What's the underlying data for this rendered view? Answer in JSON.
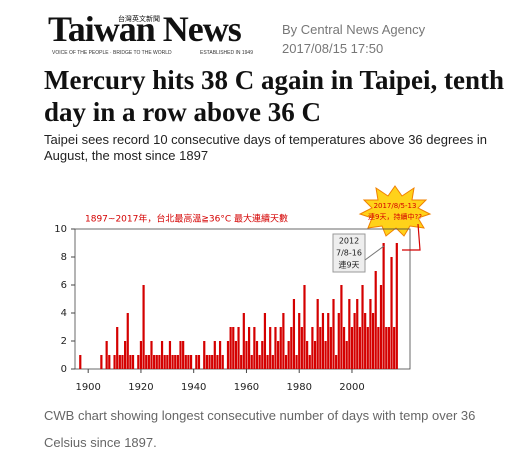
{
  "header": {
    "logo": "Taiwan News",
    "logo_chinese": "台灣英文新聞",
    "tagline": "VOICE OF THE PEOPLE · BRIDGE TO THE WORLD",
    "established": "ESTABLISHED IN 1949",
    "byline": "By  Central News Agency",
    "date": "2017/08/15 17:50"
  },
  "headline": "Mercury hits 38 C again in Taipei, tenth day in a row above 36 C",
  "subheadline": "Taipei sees record 10 consecutive days of temperatures above 36 degrees in August, the most since 1897",
  "chart_data": {
    "type": "bar",
    "title": "1897~2017年，台北最高溫≧36°C 最大連續天數",
    "color": "#d40000",
    "x": [
      1897,
      1898,
      1899,
      1900,
      1901,
      1902,
      1903,
      1904,
      1905,
      1906,
      1907,
      1908,
      1909,
      1910,
      1911,
      1912,
      1913,
      1914,
      1915,
      1916,
      1917,
      1918,
      1919,
      1920,
      1921,
      1922,
      1923,
      1924,
      1925,
      1926,
      1927,
      1928,
      1929,
      1930,
      1931,
      1932,
      1933,
      1934,
      1935,
      1936,
      1937,
      1938,
      1939,
      1940,
      1941,
      1942,
      1943,
      1944,
      1945,
      1946,
      1947,
      1948,
      1949,
      1950,
      1951,
      1952,
      1953,
      1954,
      1955,
      1956,
      1957,
      1958,
      1959,
      1960,
      1961,
      1962,
      1963,
      1964,
      1965,
      1966,
      1967,
      1968,
      1969,
      1970,
      1971,
      1972,
      1973,
      1974,
      1975,
      1976,
      1977,
      1978,
      1979,
      1980,
      1981,
      1982,
      1983,
      1984,
      1985,
      1986,
      1987,
      1988,
      1989,
      1990,
      1991,
      1992,
      1993,
      1994,
      1995,
      1996,
      1997,
      1998,
      1999,
      2000,
      2001,
      2002,
      2003,
      2004,
      2005,
      2006,
      2007,
      2008,
      2009,
      2010,
      2011,
      2012,
      2013,
      2014,
      2015,
      2016,
      2017
    ],
    "values": [
      1,
      0,
      0,
      0,
      0,
      0,
      0,
      0,
      1,
      0,
      2,
      1,
      0,
      1,
      3,
      1,
      1,
      2,
      4,
      1,
      1,
      0,
      1,
      2,
      6,
      1,
      1,
      2,
      1,
      1,
      1,
      2,
      1,
      1,
      2,
      1,
      1,
      1,
      2,
      2,
      1,
      1,
      1,
      0,
      1,
      1,
      0,
      2,
      1,
      1,
      1,
      2,
      1,
      2,
      1,
      0,
      2,
      3,
      3,
      2,
      3,
      1,
      4,
      2,
      3,
      1,
      3,
      2,
      1,
      2,
      4,
      1,
      3,
      1,
      3,
      2,
      3,
      4,
      1,
      2,
      3,
      5,
      1,
      4,
      3,
      6,
      2,
      1,
      3,
      2,
      5,
      3,
      4,
      2,
      4,
      3,
      5,
      1,
      4,
      6,
      3,
      2,
      5,
      3,
      4,
      5,
      3,
      6,
      4,
      3,
      5,
      4,
      7,
      3,
      6,
      9,
      3,
      3,
      8,
      3,
      9
    ],
    "xlim": [
      1895,
      2022
    ],
    "ylim": [
      0,
      10
    ],
    "xticks": [
      1900,
      1920,
      1940,
      1960,
      1980,
      2000
    ],
    "yticks": [
      0,
      2,
      4,
      6,
      8,
      10
    ],
    "annotations": [
      {
        "lines": [
          "2012",
          "7/8-16",
          "連9天"
        ]
      },
      {
        "lines": [
          "2017/8/5-13",
          "連9天，持續中??"
        ]
      }
    ]
  },
  "caption": "CWB chart showing longest consecutive number of days with temp over 36 Celsius since 1897."
}
